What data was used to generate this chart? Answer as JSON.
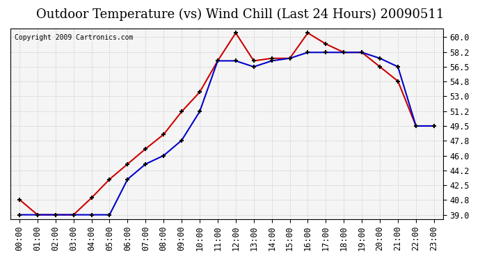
{
  "title": "Outdoor Temperature (vs) Wind Chill (Last 24 Hours) 20090511",
  "copyright": "Copyright 2009 Cartronics.com",
  "x_labels": [
    "00:00",
    "01:00",
    "02:00",
    "03:00",
    "04:00",
    "05:00",
    "06:00",
    "07:00",
    "08:00",
    "09:00",
    "10:00",
    "11:00",
    "12:00",
    "13:00",
    "14:00",
    "15:00",
    "16:00",
    "17:00",
    "18:00",
    "19:00",
    "20:00",
    "21:00",
    "22:00",
    "23:00"
  ],
  "outdoor_temp": [
    40.8,
    39.0,
    39.0,
    39.0,
    41.0,
    43.2,
    45.0,
    46.8,
    48.5,
    51.2,
    53.5,
    57.2,
    60.5,
    57.2,
    57.5,
    57.5,
    60.5,
    59.2,
    58.2,
    58.2,
    56.5,
    54.8,
    49.5,
    49.5
  ],
  "wind_chill": [
    39.0,
    39.0,
    39.0,
    39.0,
    39.0,
    39.0,
    43.2,
    45.0,
    46.0,
    47.8,
    51.2,
    57.2,
    57.2,
    56.5,
    57.2,
    57.5,
    58.2,
    58.2,
    58.2,
    58.2,
    57.5,
    56.5,
    49.5,
    49.5
  ],
  "ylim": [
    39.0,
    60.5
  ],
  "yticks": [
    39.0,
    40.8,
    42.5,
    44.2,
    46.0,
    47.8,
    49.5,
    51.2,
    53.0,
    54.8,
    56.5,
    58.2,
    60.0
  ],
  "outdoor_color": "#cc0000",
  "windchill_color": "#0000cc",
  "bg_color": "#ffffff",
  "plot_bg_color": "#f5f5f5",
  "grid_color": "#cccccc",
  "title_fontsize": 13,
  "tick_fontsize": 8.5,
  "copyright_fontsize": 7
}
